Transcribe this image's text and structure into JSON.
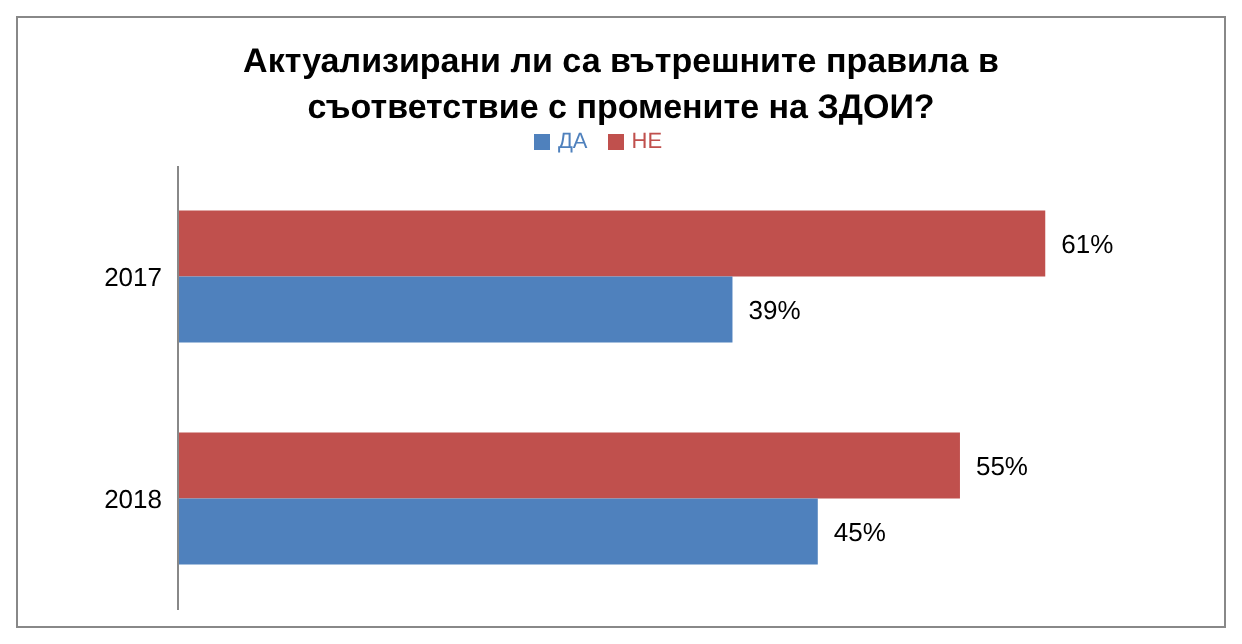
{
  "chart_data": {
    "type": "bar",
    "orientation": "horizontal",
    "title": "Актуализирани ли са вътрешните правила в съответствие с промените на ЗДОИ?",
    "categories": [
      "2017",
      "2018"
    ],
    "legend": "top",
    "series": [
      {
        "name": "НЕ",
        "color": "#c0504d",
        "values": [
          61,
          55
        ],
        "value_labels": [
          "61%",
          "55%"
        ]
      },
      {
        "name": "ДА",
        "color": "#4f81bd",
        "values": [
          39,
          45
        ],
        "value_labels": [
          "39%",
          "45%"
        ]
      }
    ]
  }
}
